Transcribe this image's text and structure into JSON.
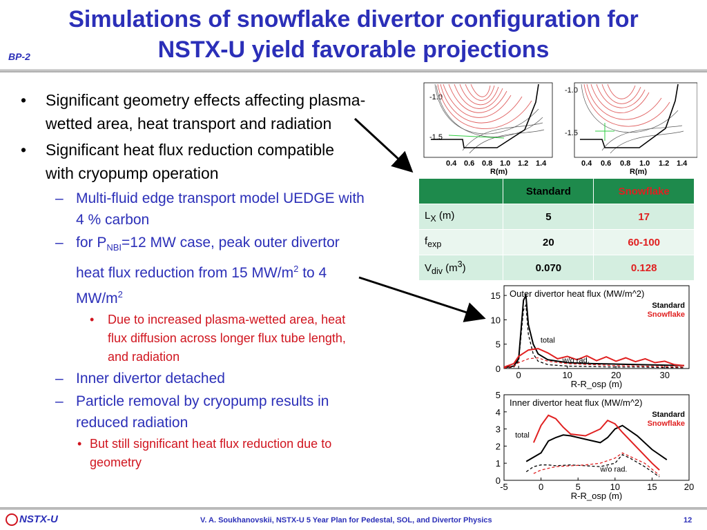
{
  "header": {
    "title_line1": "Simulations of snowflake divertor configuration for",
    "title_line2": "NSTX-U yield favorable projections",
    "badge": "BP-2"
  },
  "bullets": {
    "b1": "Significant geometry effects affecting plasma-wetted area, heat transport and radiation",
    "b2": "Significant heat flux reduction compatible with cryopump operation",
    "s1": "Multi-fluid edge transport model UEDGE with 4 % carbon",
    "s2_prefix": "for P",
    "s2_sub": "NBI",
    "s2_mid": "=12 MW case, peak outer divertor heat flux reduction from 15 MW/m",
    "s2_sup1": "2",
    "s2_to": " to 4 MW/m",
    "s2_sup2": "2",
    "t1": "Due to increased plasma-wetted area, heat flux diffusion across longer flux tube length, and radiation",
    "s3": "Inner divertor detached",
    "s4": "Particle removal by cryopump results in reduced radiation",
    "t2": "But still significant heat flux reduction due to geometry",
    "dash": "–",
    "dot": "•"
  },
  "equilibrium_plots": {
    "y_ticks": [
      "-1.0",
      "-1.5"
    ],
    "x_ticks": [
      "0.4",
      "0.6",
      "0.8",
      "1.0",
      "1.2",
      "1.4"
    ],
    "x_label": "R(m)"
  },
  "table": {
    "col_standard": "Standard",
    "col_snowflake": "Snowflake",
    "rows": [
      {
        "label": "L",
        "sub": "X",
        "suffix": " (m)",
        "standard": "5",
        "snowflake": "17"
      },
      {
        "label": "f",
        "sub": "exp",
        "suffix": "",
        "standard": "20",
        "snowflake": "60-100"
      },
      {
        "label": "V",
        "sub": "div",
        "suffix": " (m",
        "sup": "3",
        "suffix2": ")",
        "standard": "0.070",
        "snowflake": "0.128"
      }
    ]
  },
  "chart_data": [
    {
      "type": "line",
      "title": "Outer divertor heat flux (MW/m^2)",
      "xlabel": "R-R_osp (m)",
      "ylabel": "",
      "xlim": [
        -3,
        35
      ],
      "ylim": [
        0,
        17
      ],
      "x_ticks": [
        0,
        10,
        20,
        30
      ],
      "y_ticks": [
        0,
        5,
        10,
        15
      ],
      "legend": [
        "Standard",
        "Snowflake"
      ],
      "annotations": [
        "total",
        "w/o rad."
      ],
      "series": [
        {
          "name": "Standard",
          "style": "total",
          "color": "#000000",
          "x": [
            -3,
            -1,
            0,
            1,
            1.5,
            2,
            3,
            4,
            6,
            10,
            15,
            20,
            25,
            30,
            34
          ],
          "y": [
            0.2,
            0.5,
            2,
            14,
            15,
            9,
            5,
            3,
            1.8,
            1.2,
            1.0,
            0.9,
            0.8,
            0.7,
            0.6
          ]
        },
        {
          "name": "Standard",
          "style": "w/o rad.",
          "color": "#000000",
          "x": [
            -3,
            -1,
            0,
            1,
            1.5,
            2,
            3,
            4,
            6,
            10,
            15,
            20,
            25,
            30,
            34
          ],
          "y": [
            0.1,
            0.3,
            1.5,
            12,
            13,
            7,
            3,
            1.5,
            0.8,
            0.5,
            0.4,
            0.3,
            0.3,
            0.2,
            0.2
          ]
        },
        {
          "name": "Snowflake",
          "style": "total",
          "color": "#e02020",
          "x": [
            -3,
            -1,
            0,
            2,
            4,
            6,
            8,
            10,
            12,
            14,
            16,
            18,
            20,
            22,
            24,
            26,
            28,
            30,
            32,
            34
          ],
          "y": [
            0.3,
            1,
            2.5,
            3.8,
            4.1,
            3.2,
            2,
            2.5,
            1.8,
            2.6,
            1.6,
            2.4,
            1.5,
            2.2,
            1.4,
            2.0,
            1.2,
            1.5,
            0.8,
            0.6
          ]
        },
        {
          "name": "Snowflake",
          "style": "w/o rad.",
          "color": "#e02020",
          "x": [
            -3,
            -1,
            0,
            2,
            4,
            6,
            10,
            15,
            20,
            25,
            30,
            34
          ],
          "y": [
            0.1,
            0.5,
            1.2,
            2.0,
            2.2,
            1.5,
            1.0,
            0.8,
            0.6,
            0.5,
            0.4,
            0.3
          ]
        }
      ]
    },
    {
      "type": "line",
      "title": "Inner divertor heat flux (MW/m^2)",
      "xlabel": "R-R_osp (m)",
      "ylabel": "",
      "xlim": [
        -5,
        20
      ],
      "ylim": [
        0,
        5
      ],
      "x_ticks": [
        -5,
        0,
        5,
        10,
        15,
        20
      ],
      "y_ticks": [
        0,
        1,
        2,
        3,
        4,
        5
      ],
      "legend": [
        "Standard",
        "Snowflake"
      ],
      "annotations": [
        "total",
        "w/o rad."
      ],
      "series": [
        {
          "name": "Standard",
          "style": "total",
          "color": "#000000",
          "x": [
            -2,
            0,
            1,
            2,
            3,
            4,
            6,
            8,
            9,
            10,
            11,
            13,
            15,
            17
          ],
          "y": [
            1.1,
            1.6,
            2.3,
            2.5,
            2.65,
            2.6,
            2.4,
            2.2,
            2.5,
            3.0,
            3.2,
            2.6,
            1.8,
            1.2
          ]
        },
        {
          "name": "Standard",
          "style": "w/o rad.",
          "color": "#000000",
          "x": [
            -2,
            -1,
            0,
            1,
            2,
            4,
            6,
            8,
            10,
            11,
            12,
            14,
            16
          ],
          "y": [
            0.5,
            0.8,
            0.9,
            0.9,
            0.85,
            0.9,
            0.85,
            0.8,
            1.0,
            1.5,
            1.3,
            0.8,
            0.2
          ]
        },
        {
          "name": "Snowflake",
          "style": "total",
          "color": "#e02020",
          "x": [
            -1,
            0,
            1,
            2,
            3,
            4,
            6,
            8,
            9,
            10,
            11,
            13,
            15,
            16
          ],
          "y": [
            2.2,
            3.2,
            3.8,
            3.6,
            3.1,
            2.7,
            2.6,
            3.0,
            3.5,
            3.3,
            2.8,
            1.9,
            1.0,
            0.6
          ]
        },
        {
          "name": "Snowflake",
          "style": "w/o rad.",
          "color": "#e02020",
          "x": [
            -1,
            0,
            2,
            4,
            6,
            8,
            10,
            11,
            12,
            14,
            16
          ],
          "y": [
            0.4,
            0.6,
            0.8,
            0.85,
            0.9,
            1.0,
            1.3,
            1.6,
            1.4,
            1.0,
            0.3
          ]
        }
      ]
    }
  ],
  "footer": {
    "logo": "NSTX-U",
    "text": "V. A. Soukhanovskii, NSTX-U 5 Year Plan for Pedestal, SOL, and Divertor Physics",
    "page": "12"
  },
  "colors": {
    "title_blue": "#2b2fb8",
    "accent_red": "#d0141e",
    "table_green": "#1e8a4c"
  }
}
